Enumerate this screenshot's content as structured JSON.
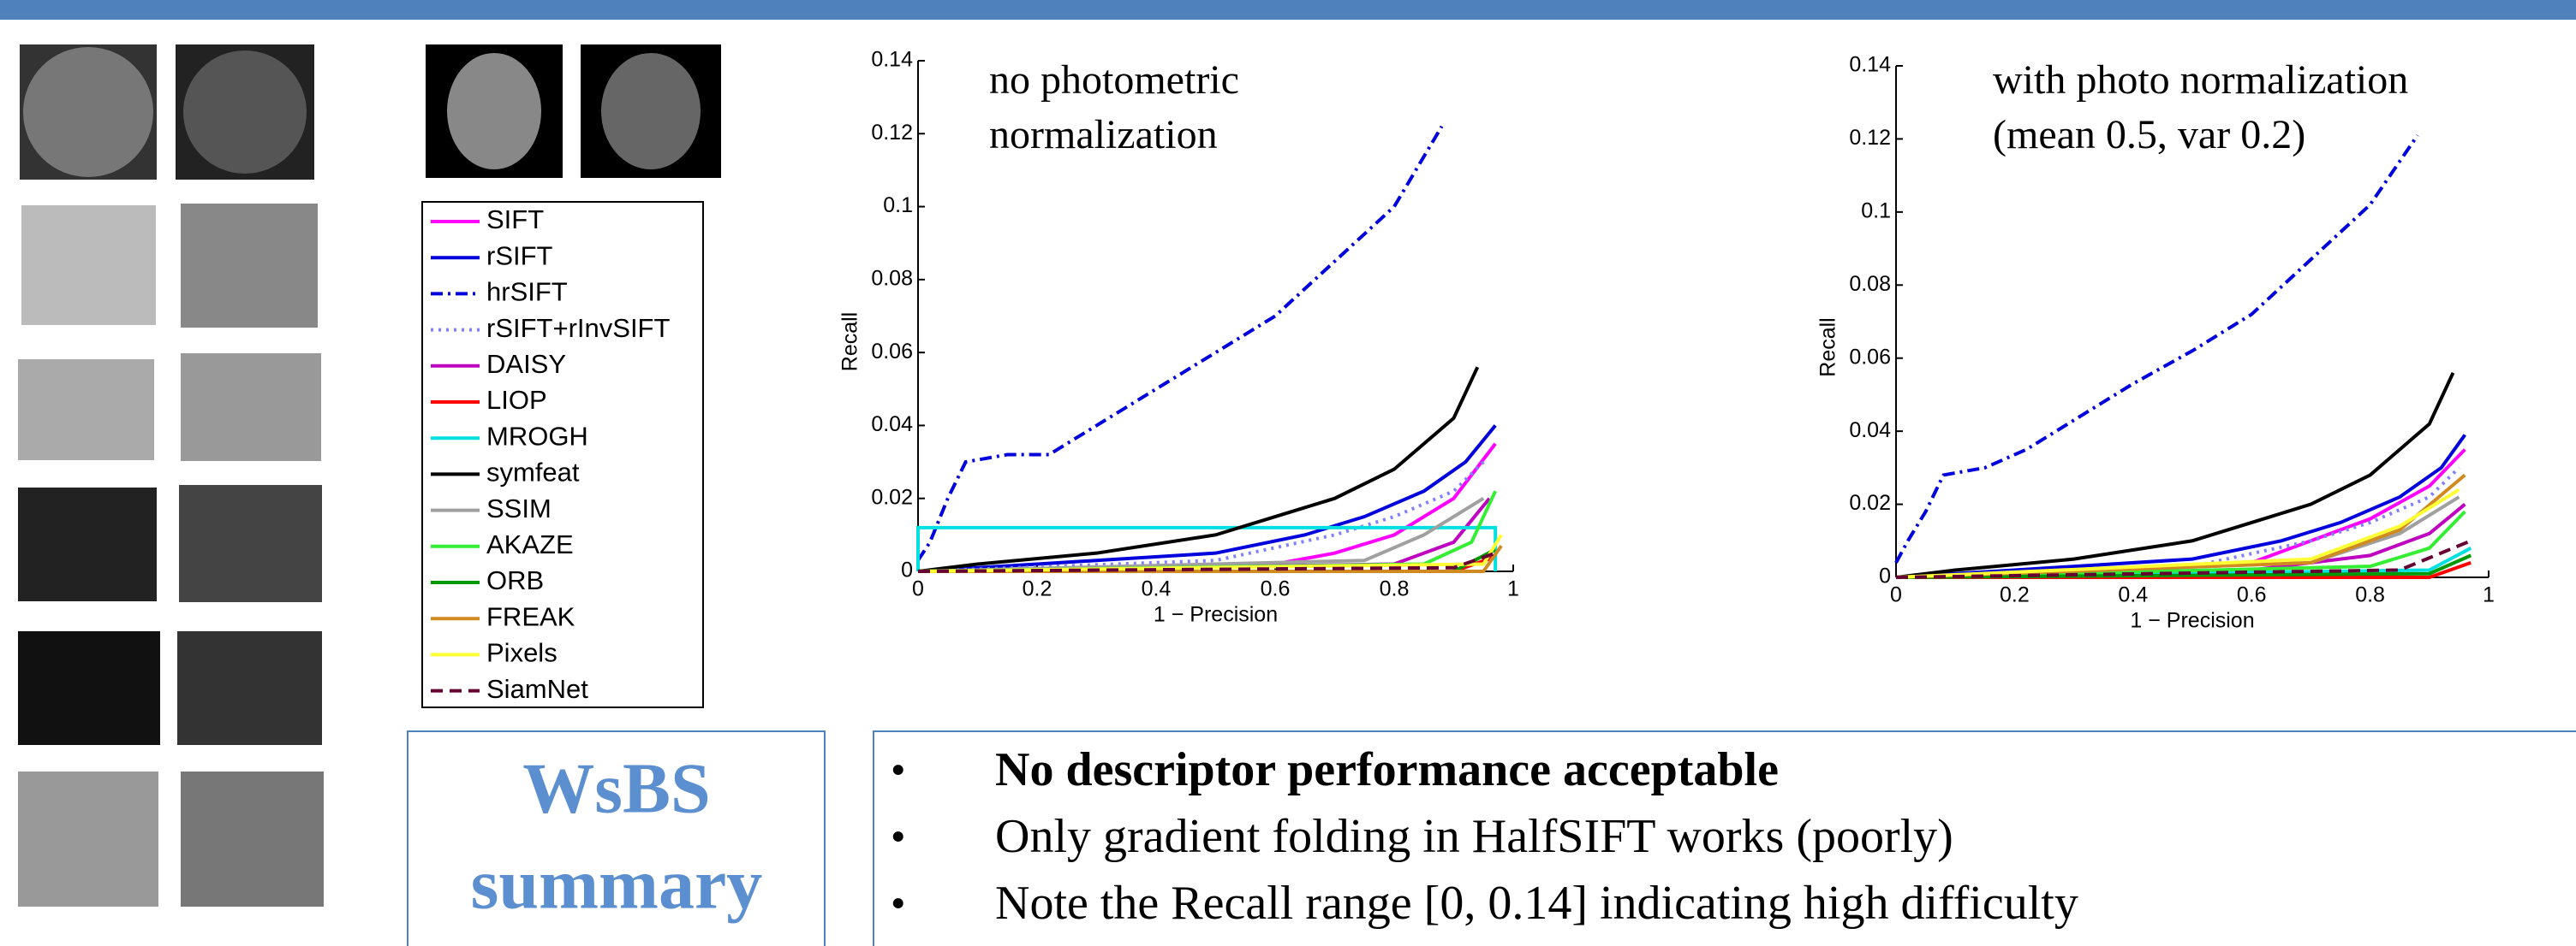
{
  "chart_data": [
    {
      "type": "line",
      "annotation": [
        "no photometric",
        "normalization"
      ],
      "ylabel": "Recall",
      "xlabel": "1 − Precision",
      "xlim": [
        0,
        1
      ],
      "xticks": [
        0,
        0.2,
        0.4,
        0.6,
        0.8,
        1
      ],
      "ylim": [
        0,
        0.14
      ],
      "yticks": [
        0,
        0.02,
        0.04,
        0.06,
        0.08,
        0.1,
        0.12,
        0.14
      ],
      "series": [
        {
          "name": "SIFT",
          "color": "#ff00ff",
          "style": "solid",
          "x": [
            0,
            0.6,
            0.7,
            0.8,
            0.9,
            0.97
          ],
          "values": [
            0,
            0.002,
            0.005,
            0.01,
            0.02,
            0.035
          ]
        },
        {
          "name": "rSIFT",
          "color": "#0000dd",
          "style": "solid",
          "x": [
            0,
            0.2,
            0.5,
            0.65,
            0.75,
            0.85,
            0.92,
            0.97
          ],
          "values": [
            0,
            0.002,
            0.005,
            0.01,
            0.015,
            0.022,
            0.03,
            0.04
          ]
        },
        {
          "name": "hrSIFT",
          "color": "#0000dd",
          "style": "dashdot",
          "x": [
            0,
            0.02,
            0.05,
            0.08,
            0.15,
            0.22,
            0.3,
            0.4,
            0.5,
            0.6,
            0.7,
            0.8,
            0.88
          ],
          "values": [
            0.003,
            0.008,
            0.02,
            0.03,
            0.032,
            0.032,
            0.04,
            0.05,
            0.06,
            0.07,
            0.085,
            0.1,
            0.122
          ]
        },
        {
          "name": "rSIFT+rInvSIFT",
          "color": "#8080ff",
          "style": "dotted",
          "x": [
            0,
            0.5,
            0.7,
            0.8,
            0.9,
            0.95
          ],
          "values": [
            0,
            0.003,
            0.01,
            0.015,
            0.022,
            0.03
          ]
        },
        {
          "name": "DAISY",
          "color": "#c000c0",
          "style": "solid",
          "x": [
            0,
            0.8,
            0.9,
            0.96
          ],
          "values": [
            0,
            0.002,
            0.008,
            0.02
          ]
        },
        {
          "name": "LIOP",
          "color": "#ff0000",
          "style": "solid",
          "x": [
            0,
            0.9,
            0.97
          ],
          "values": [
            0,
            0,
            0.004
          ]
        },
        {
          "name": "MROGH",
          "color": "#00e0e0",
          "style": "solid",
          "x": [
            0,
            0,
            0.97,
            0.97
          ],
          "values": [
            0,
            0.012,
            0.012,
            0
          ]
        },
        {
          "name": "symfeat",
          "color": "#000000",
          "style": "solid",
          "x": [
            0,
            0.1,
            0.3,
            0.5,
            0.6,
            0.7,
            0.8,
            0.9,
            0.94
          ],
          "values": [
            0,
            0.002,
            0.005,
            0.01,
            0.015,
            0.02,
            0.028,
            0.042,
            0.056
          ]
        },
        {
          "name": "SSIM",
          "color": "#a0a0a0",
          "style": "solid",
          "x": [
            0,
            0.75,
            0.85,
            0.95
          ],
          "values": [
            0,
            0.003,
            0.01,
            0.02
          ]
        },
        {
          "name": "AKAZE",
          "color": "#33ee33",
          "style": "solid",
          "x": [
            0,
            0.85,
            0.93,
            0.97
          ],
          "values": [
            0,
            0.002,
            0.008,
            0.022
          ]
        },
        {
          "name": "ORB",
          "color": "#009900",
          "style": "solid",
          "x": [
            0,
            0.9,
            0.97
          ],
          "values": [
            0,
            0,
            0.006
          ]
        },
        {
          "name": "FREAK",
          "color": "#d08a20",
          "style": "solid",
          "x": [
            0,
            0.95,
            0.98
          ],
          "values": [
            0,
            0,
            0.007
          ]
        },
        {
          "name": "Pixels",
          "color": "#ffff33",
          "style": "solid",
          "x": [
            0,
            0.95,
            0.98
          ],
          "values": [
            0,
            0.002,
            0.01
          ]
        },
        {
          "name": "SiamNet",
          "color": "#660033",
          "style": "dashed",
          "x": [
            0,
            0.9,
            0.97
          ],
          "values": [
            0,
            0.001,
            0.005
          ]
        }
      ]
    },
    {
      "type": "line",
      "annotation": [
        "with photo normalization",
        "(mean 0.5, var 0.2)"
      ],
      "ylabel": "Recall",
      "xlabel": "1 − Precision",
      "xlim": [
        0,
        1
      ],
      "xticks": [
        0,
        0.2,
        0.4,
        0.6,
        0.8,
        1
      ],
      "ylim": [
        0,
        0.14
      ],
      "yticks": [
        0,
        0.02,
        0.04,
        0.06,
        0.08,
        0.1,
        0.12,
        0.14
      ],
      "series": [
        {
          "color": "#ff00ff",
          "style": "solid",
          "x": [
            0,
            0.6,
            0.7,
            0.8,
            0.9,
            0.96
          ],
          "values": [
            0,
            0.004,
            0.01,
            0.016,
            0.025,
            0.035
          ]
        },
        {
          "color": "#0000dd",
          "style": "solid",
          "x": [
            0,
            0.2,
            0.5,
            0.65,
            0.75,
            0.85,
            0.92,
            0.96
          ],
          "values": [
            0,
            0.002,
            0.005,
            0.01,
            0.015,
            0.022,
            0.03,
            0.039
          ]
        },
        {
          "color": "#0000dd",
          "style": "dashdot",
          "x": [
            0,
            0.02,
            0.05,
            0.08,
            0.15,
            0.22,
            0.3,
            0.4,
            0.5,
            0.6,
            0.7,
            0.8,
            0.88
          ],
          "values": [
            0.004,
            0.01,
            0.018,
            0.028,
            0.03,
            0.035,
            0.043,
            0.053,
            0.062,
            0.072,
            0.087,
            0.102,
            0.121
          ]
        },
        {
          "color": "#8080ff",
          "style": "dotted",
          "x": [
            0,
            0.5,
            0.7,
            0.8,
            0.9,
            0.95
          ],
          "values": [
            0,
            0.003,
            0.01,
            0.015,
            0.022,
            0.03
          ]
        },
        {
          "color": "#c000c0",
          "style": "solid",
          "x": [
            0,
            0.6,
            0.8,
            0.9,
            0.96
          ],
          "values": [
            0,
            0.002,
            0.006,
            0.012,
            0.02
          ]
        },
        {
          "color": "#ff0000",
          "style": "solid",
          "x": [
            0,
            0.9,
            0.97
          ],
          "values": [
            0,
            0,
            0.004
          ]
        },
        {
          "color": "#00e0e0",
          "style": "solid",
          "x": [
            0,
            0.9,
            0.97
          ],
          "values": [
            0,
            0.002,
            0.008
          ]
        },
        {
          "color": "#000000",
          "style": "solid",
          "x": [
            0,
            0.1,
            0.3,
            0.5,
            0.6,
            0.7,
            0.8,
            0.9,
            0.94
          ],
          "values": [
            0,
            0.002,
            0.005,
            0.01,
            0.015,
            0.02,
            0.028,
            0.042,
            0.056
          ]
        },
        {
          "color": "#a0a0a0",
          "style": "solid",
          "x": [
            0,
            0.7,
            0.85,
            0.95
          ],
          "values": [
            0,
            0.004,
            0.012,
            0.022
          ]
        },
        {
          "color": "#33ee33",
          "style": "solid",
          "x": [
            0,
            0.8,
            0.9,
            0.96
          ],
          "values": [
            0,
            0.003,
            0.008,
            0.018
          ]
        },
        {
          "color": "#009900",
          "style": "solid",
          "x": [
            0,
            0.9,
            0.97
          ],
          "values": [
            0,
            0.001,
            0.006
          ]
        },
        {
          "color": "#d08a20",
          "style": "solid",
          "x": [
            0,
            0.7,
            0.85,
            0.96
          ],
          "values": [
            0,
            0.004,
            0.013,
            0.028
          ]
        },
        {
          "color": "#ffff33",
          "style": "solid",
          "x": [
            0,
            0.7,
            0.85,
            0.95
          ],
          "values": [
            0,
            0.005,
            0.014,
            0.024
          ]
        },
        {
          "color": "#660033",
          "style": "dashed",
          "x": [
            0,
            0.85,
            0.97
          ],
          "values": [
            0,
            0.002,
            0.01
          ]
        }
      ]
    }
  ],
  "summary": [
    "WsBS",
    "summary"
  ],
  "bullets": [
    "No descriptor performance acceptable",
    "Only  gradient folding in HalfSIFT works (poorly)",
    "Note the Recall range [0, 0.14]  indicating high difficulty"
  ]
}
